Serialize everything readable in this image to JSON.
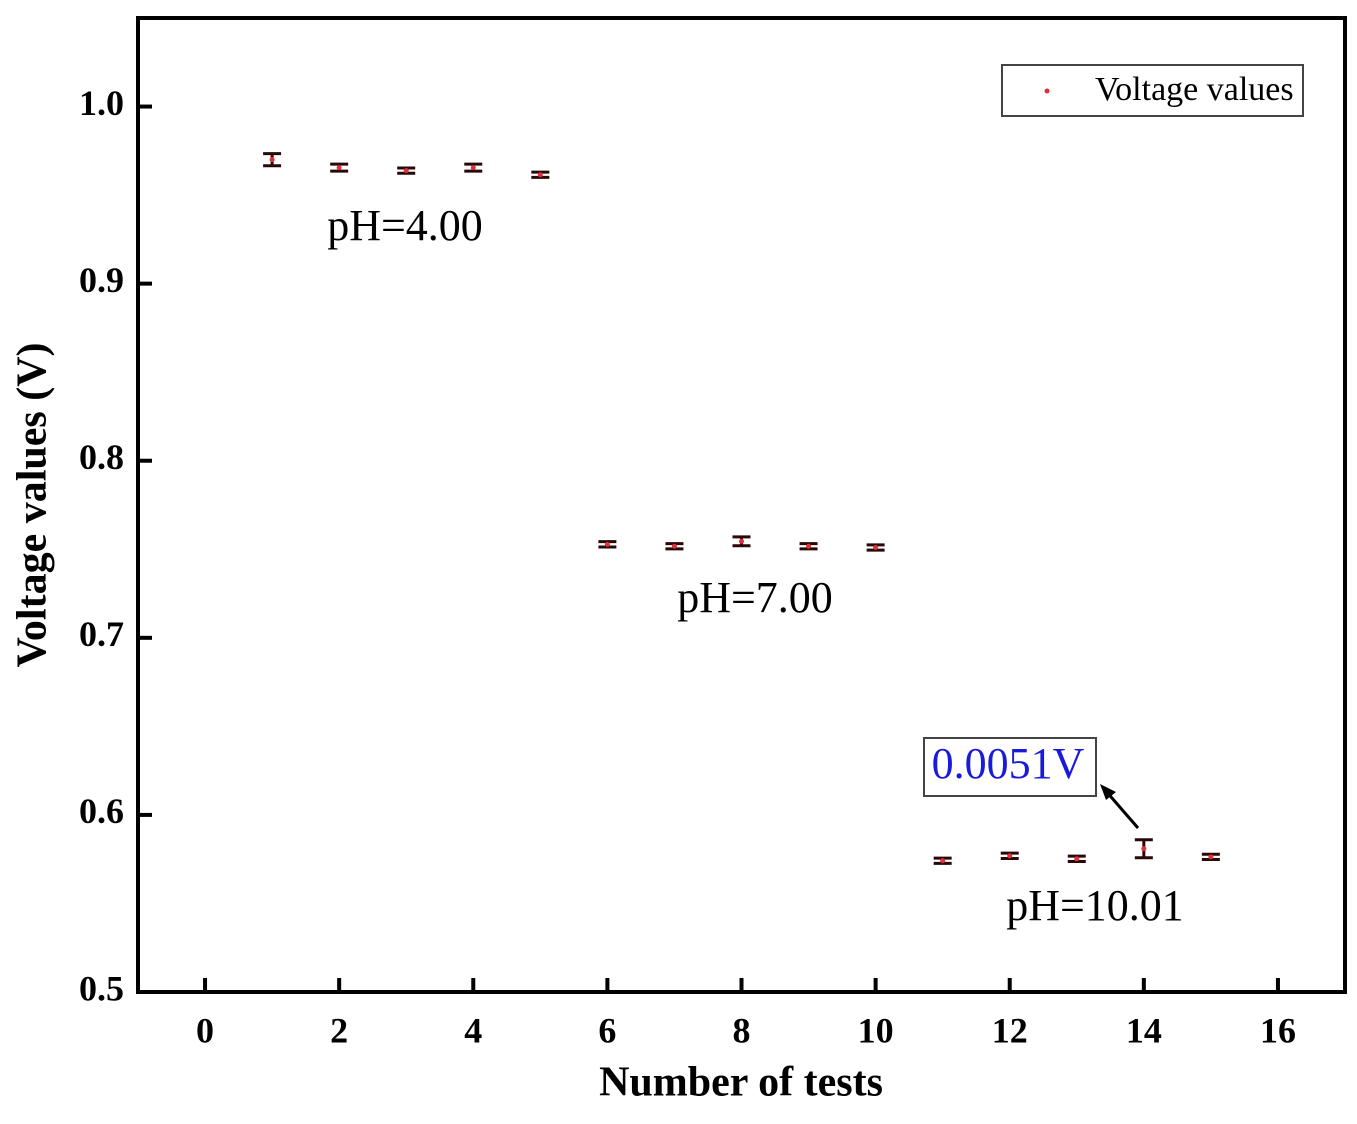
{
  "chart_data": {
    "type": "scatter",
    "xlabel": "Number of tests",
    "ylabel": "Voltage values (V)",
    "x": [
      1,
      2,
      3,
      4,
      5,
      6,
      7,
      8,
      9,
      10,
      11,
      12,
      13,
      14,
      15
    ],
    "series": [
      {
        "name": "Voltage values",
        "color": "#e0303a",
        "errorbar_color": "#2a0808",
        "values": [
          0.97,
          0.9655,
          0.9638,
          0.9655,
          0.9615,
          0.7528,
          0.7517,
          0.7545,
          0.7517,
          0.751,
          0.5741,
          0.5769,
          0.5752,
          0.5809,
          0.5763
        ],
        "errors": [
          0.0034,
          0.002,
          0.0015,
          0.002,
          0.0015,
          0.0015,
          0.0015,
          0.0025,
          0.0015,
          0.0015,
          0.0015,
          0.0015,
          0.0015,
          0.0051,
          0.0015
        ]
      }
    ],
    "xlim": [
      -1,
      17
    ],
    "ylim": [
      0.5,
      1.05
    ],
    "xticks": [
      0,
      2,
      4,
      6,
      8,
      10,
      12,
      14,
      16
    ],
    "yticks": [
      0.5,
      0.6,
      0.7,
      0.8,
      0.9,
      {
        "value": 1,
        "label": "1.0"
      }
    ],
    "legend": "upper right",
    "annotations": [
      "pH=4.00",
      "pH=7.00",
      "pH=10.01",
      "0.0051V"
    ]
  }
}
